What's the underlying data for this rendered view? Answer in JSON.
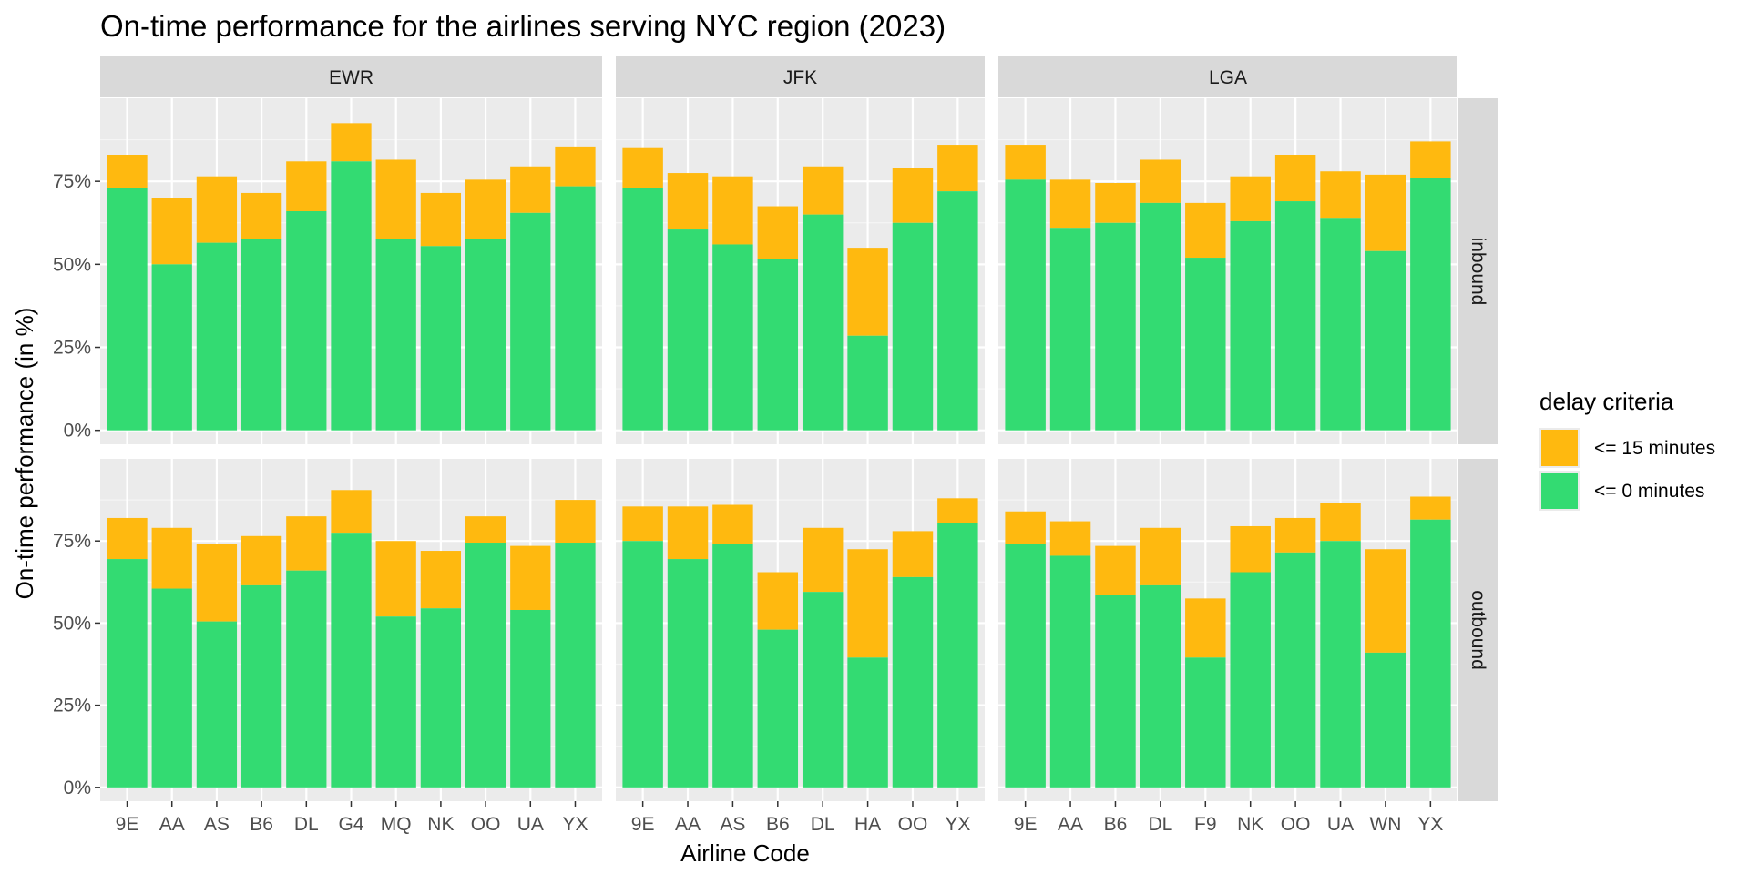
{
  "chart_data": {
    "type": "bar",
    "stacked": true,
    "title": "On-time performance for the airlines serving NYC region (2023)",
    "xlabel": "Airline Code",
    "ylabel": "On-time performance (in %)",
    "ylim": [
      0,
      100
    ],
    "yticks": [
      "0%",
      "25%",
      "50%",
      "75%"
    ],
    "yticks_values": [
      0,
      25,
      50,
      75
    ],
    "grid": true,
    "legend": {
      "title": "delay criteria",
      "position": "right",
      "items": [
        {
          "label": "<= 15 minutes",
          "color": "#FFB90F"
        },
        {
          "label": "<= 0 minutes",
          "color": "#33DB72"
        }
      ]
    },
    "rows": [
      "inbound",
      "outbound"
    ],
    "columns": [
      {
        "airport": "EWR",
        "categories": [
          "9E",
          "AA",
          "AS",
          "B6",
          "DL",
          "G4",
          "MQ",
          "NK",
          "OO",
          "UA",
          "YX"
        ]
      },
      {
        "airport": "JFK",
        "categories": [
          "9E",
          "AA",
          "AS",
          "B6",
          "DL",
          "HA",
          "OO",
          "YX"
        ]
      },
      {
        "airport": "LGA",
        "categories": [
          "9E",
          "AA",
          "B6",
          "DL",
          "F9",
          "NK",
          "OO",
          "UA",
          "WN",
          "YX"
        ]
      }
    ],
    "panels": [
      {
        "airport": "EWR",
        "direction": "inbound",
        "on_time_0": [
          73,
          50,
          56.5,
          57.5,
          66,
          81,
          57.5,
          55.5,
          57.5,
          65.5,
          73.5
        ],
        "on_time_15": [
          83,
          70,
          76.5,
          71.5,
          81,
          92.5,
          81.5,
          71.5,
          75.5,
          79.5,
          85.5
        ]
      },
      {
        "airport": "JFK",
        "direction": "inbound",
        "on_time_0": [
          73,
          60.5,
          56,
          51.5,
          65,
          28.5,
          62.5,
          72
        ],
        "on_time_15": [
          85,
          77.5,
          76.5,
          67.5,
          79.5,
          55,
          79,
          86
        ]
      },
      {
        "airport": "LGA",
        "direction": "inbound",
        "on_time_0": [
          75.5,
          61,
          62.5,
          68.5,
          52,
          63,
          69,
          64,
          54,
          76
        ],
        "on_time_15": [
          86,
          75.5,
          74.5,
          81.5,
          68.5,
          76.5,
          83,
          78,
          77,
          87
        ]
      },
      {
        "airport": "EWR",
        "direction": "outbound",
        "on_time_0": [
          69.5,
          60.5,
          50.5,
          61.5,
          66,
          77.5,
          52,
          54.5,
          74.5,
          54,
          74.5
        ],
        "on_time_15": [
          82,
          79,
          74,
          76.5,
          82.5,
          90.5,
          75,
          72,
          82.5,
          73.5,
          87.5
        ]
      },
      {
        "airport": "JFK",
        "direction": "outbound",
        "on_time_0": [
          75,
          69.5,
          74,
          48,
          59.5,
          39.5,
          64,
          80.5
        ],
        "on_time_15": [
          85.5,
          85.5,
          86,
          65.5,
          79,
          72.5,
          78,
          88
        ]
      },
      {
        "airport": "LGA",
        "direction": "outbound",
        "on_time_0": [
          74,
          70.5,
          58.5,
          61.5,
          39.5,
          65.5,
          71.5,
          75,
          41,
          81.5
        ],
        "on_time_15": [
          84,
          81,
          73.5,
          79,
          57.5,
          79.5,
          82,
          86.5,
          72.5,
          88.5
        ]
      }
    ]
  }
}
